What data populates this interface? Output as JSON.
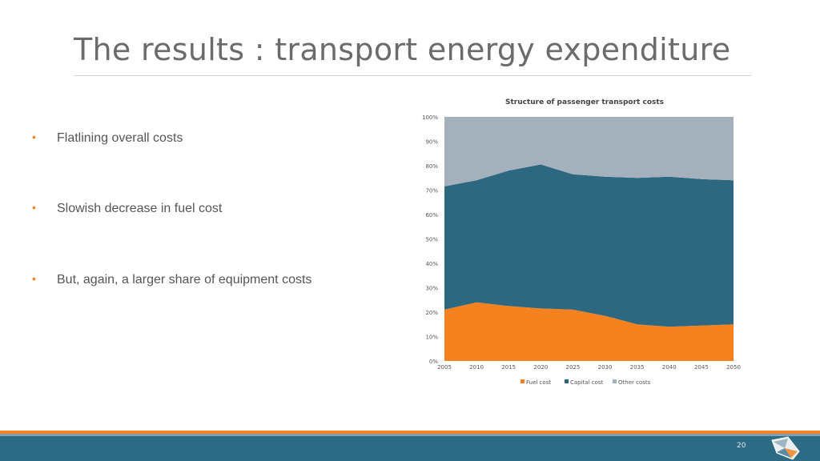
{
  "slide": {
    "title": "The results : transport energy expenditure",
    "page_number": "20"
  },
  "bullets": [
    "Flatlining overall costs",
    "Slowish decrease in fuel cost",
    "But, again, a larger share of equipment costs"
  ],
  "colors": {
    "accent": "#f5821f",
    "fuel": "#f5821f",
    "capital": "#2e6880",
    "other": "#a4b1bc",
    "footer": "#2d6a84"
  },
  "chart_data": {
    "type": "area",
    "stacked": true,
    "percent": true,
    "title": "Structure of passenger transport costs",
    "x": [
      2005,
      2010,
      2015,
      2020,
      2025,
      2030,
      2035,
      2040,
      2045,
      2050
    ],
    "x_tick_labels": [
      "2005",
      "2010",
      "2015",
      "2020",
      "2025",
      "2030",
      "2035",
      "2040",
      "2045",
      "2050"
    ],
    "y_tick_labels": [
      "0%",
      "10%",
      "20%",
      "30%",
      "40%",
      "50%",
      "60%",
      "70%",
      "80%",
      "90%",
      "100%"
    ],
    "ylim": [
      0,
      100
    ],
    "series": [
      {
        "name": "Fuel cost",
        "color": "#f5821f",
        "values": [
          21,
          24,
          22.5,
          21.5,
          21,
          18.5,
          15,
          14,
          14.5,
          15
        ]
      },
      {
        "name": "Capital cost",
        "color": "#2e6880",
        "values": [
          50.5,
          50,
          55.5,
          59,
          55.5,
          57,
          60,
          61.5,
          60,
          59
        ]
      },
      {
        "name": "Other costs",
        "color": "#a4b1bc",
        "values": [
          28.5,
          26,
          22,
          19.5,
          23.5,
          24.5,
          25,
          24.5,
          25.5,
          26
        ]
      }
    ],
    "legend_position": "bottom",
    "grid": false
  }
}
